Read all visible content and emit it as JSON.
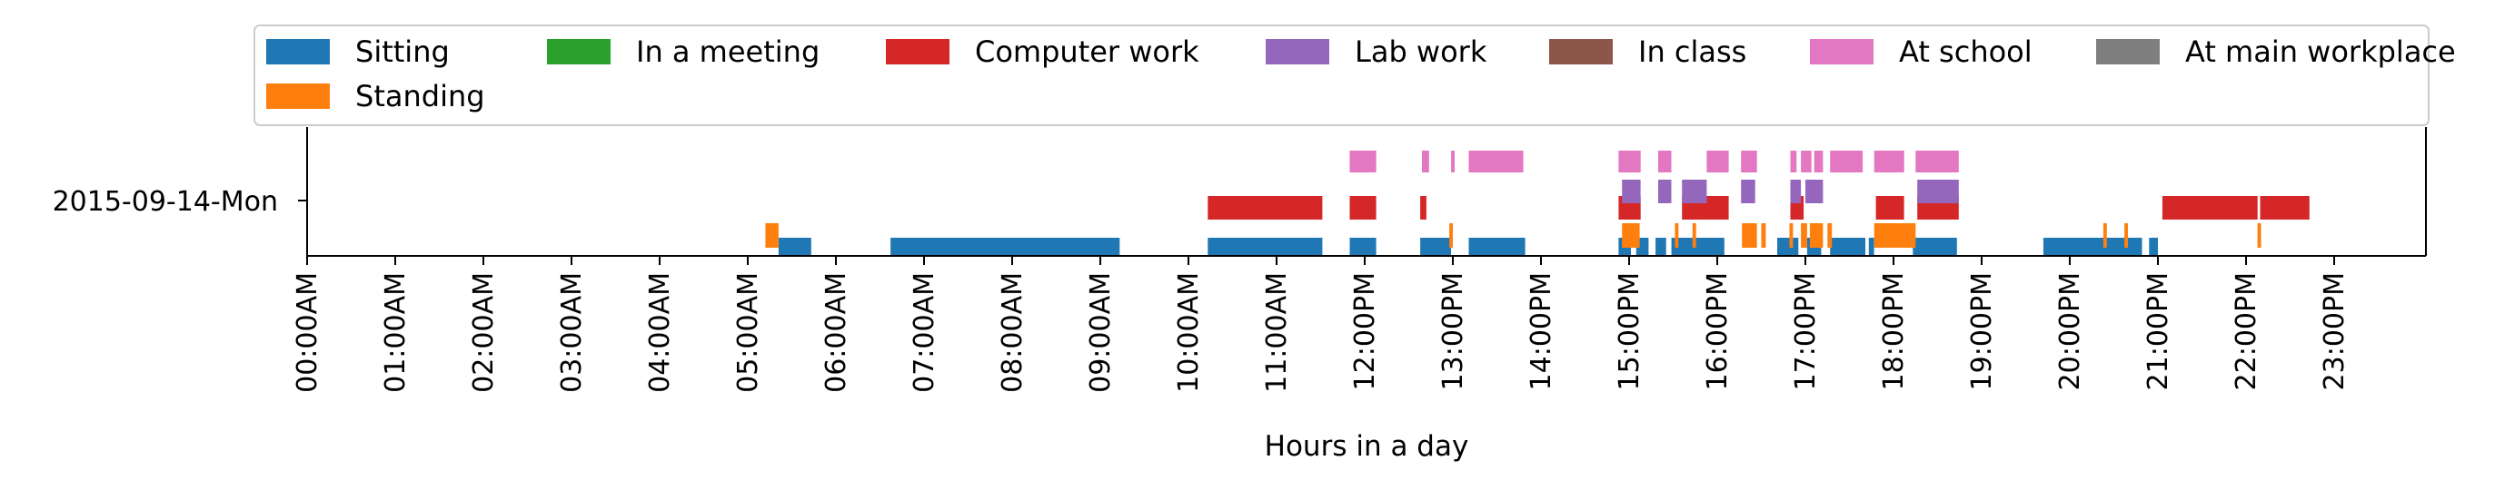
{
  "chart_data": {
    "type": "timeline",
    "day_label": "2015-09-14-Mon",
    "xlabel": "Hours in a day",
    "x_range_hours": [
      0,
      24
    ],
    "x_ticks": [
      "00:00AM",
      "01:00AM",
      "02:00AM",
      "03:00AM",
      "04:00AM",
      "05:00AM",
      "06:00AM",
      "07:00AM",
      "08:00AM",
      "09:00AM",
      "10:00AM",
      "11:00AM",
      "12:00PM",
      "13:00PM",
      "14:00PM",
      "15:00PM",
      "16:00PM",
      "17:00PM",
      "18:00PM",
      "19:00PM",
      "20:00PM",
      "21:00PM",
      "22:00PM",
      "23:00PM"
    ],
    "legend_placement": "top",
    "legend": [
      {
        "name": "Sitting",
        "color": "#1f77b4"
      },
      {
        "name": "In a meeting",
        "color": "#2ca02c"
      },
      {
        "name": "Computer work",
        "color": "#d62728"
      },
      {
        "name": "Lab work",
        "color": "#9467bd"
      },
      {
        "name": "In class",
        "color": "#8c564b"
      },
      {
        "name": "At school",
        "color": "#e377c2"
      },
      {
        "name": "At main workplace",
        "color": "#7f7f7f"
      },
      {
        "name": "Standing",
        "color": "#ff7f0e"
      }
    ],
    "series": [
      {
        "name": "Sitting",
        "lane": 0,
        "intervals": [
          [
            5.35,
            5.72
          ],
          [
            6.62,
            9.22
          ],
          [
            10.22,
            11.52
          ],
          [
            11.83,
            12.13
          ],
          [
            12.63,
            12.98
          ],
          [
            13.18,
            13.82
          ],
          [
            14.88,
            15.02
          ],
          [
            15.08,
            15.22
          ],
          [
            15.3,
            15.42
          ],
          [
            15.48,
            16.08
          ],
          [
            16.68,
            16.92
          ],
          [
            17.02,
            17.18
          ],
          [
            17.28,
            17.68
          ],
          [
            17.72,
            17.78
          ],
          [
            18.22,
            18.72
          ],
          [
            19.7,
            20.82
          ],
          [
            20.9,
            21.0
          ]
        ]
      },
      {
        "name": "Standing",
        "lane": 0.7,
        "intervals": [
          [
            5.2,
            5.35
          ],
          [
            12.96,
            13.0
          ],
          [
            14.92,
            15.12
          ],
          [
            15.52,
            15.56
          ],
          [
            15.72,
            15.76
          ],
          [
            16.28,
            16.45
          ],
          [
            16.5,
            16.55
          ],
          [
            16.82,
            16.86
          ],
          [
            16.95,
            17.02
          ],
          [
            17.05,
            17.2
          ],
          [
            17.25,
            17.3
          ],
          [
            17.78,
            18.25
          ],
          [
            20.38,
            20.42
          ],
          [
            20.62,
            20.66
          ],
          [
            22.13,
            22.17
          ]
        ]
      },
      {
        "name": "Computer work",
        "lane": 1,
        "intervals": [
          [
            10.22,
            11.52
          ],
          [
            11.83,
            12.13
          ],
          [
            12.63,
            12.7
          ],
          [
            14.88,
            15.13
          ],
          [
            15.6,
            16.13
          ],
          [
            16.83,
            16.98
          ],
          [
            17.8,
            18.12
          ],
          [
            18.27,
            18.74
          ],
          [
            21.05,
            22.13
          ],
          [
            22.16,
            22.72
          ]
        ]
      },
      {
        "name": "Lab work",
        "lane": 2,
        "intervals": [
          [
            14.92,
            15.13
          ],
          [
            15.33,
            15.48
          ],
          [
            15.6,
            15.88
          ],
          [
            16.27,
            16.43
          ],
          [
            16.83,
            16.95
          ],
          [
            17.0,
            17.2
          ],
          [
            18.27,
            18.74
          ]
        ]
      },
      {
        "name": "At school",
        "lane": 3,
        "intervals": [
          [
            11.83,
            12.13
          ],
          [
            12.65,
            12.73
          ],
          [
            12.98,
            13.02
          ],
          [
            13.18,
            13.8
          ],
          [
            14.88,
            15.13
          ],
          [
            15.33,
            15.48
          ],
          [
            15.88,
            16.13
          ],
          [
            16.27,
            16.45
          ],
          [
            16.83,
            16.9
          ],
          [
            16.95,
            17.07
          ],
          [
            17.1,
            17.2
          ],
          [
            17.28,
            17.65
          ],
          [
            17.78,
            18.12
          ],
          [
            18.25,
            18.74
          ]
        ]
      }
    ]
  }
}
